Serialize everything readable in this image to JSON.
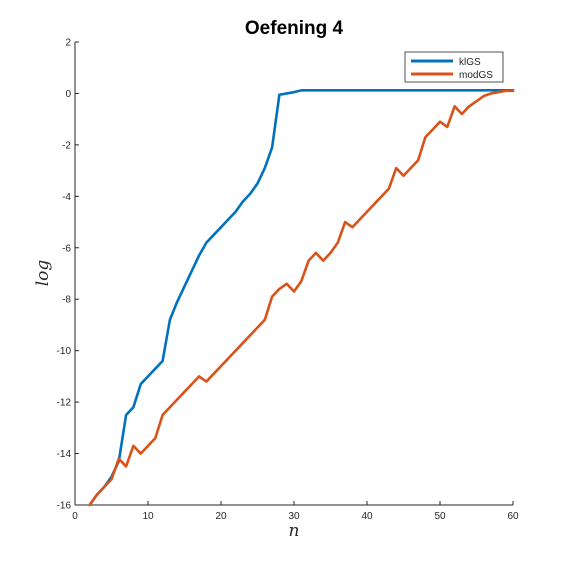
{
  "chart_data": {
    "type": "line",
    "title": "Oefening 4",
    "xlabel": "n",
    "ylabel": "log",
    "xlim": [
      0,
      60
    ],
    "ylim": [
      -16,
      2
    ],
    "xticks": [
      0,
      10,
      20,
      30,
      40,
      50,
      60
    ],
    "yticks": [
      2,
      0,
      -2,
      -4,
      -6,
      -8,
      -10,
      -12,
      -14,
      -16
    ],
    "grid": false,
    "legend_position": "top-right",
    "series": [
      {
        "name": "klGS",
        "color": "#0072BD",
        "x": [
          2,
          3,
          4,
          5,
          6,
          7,
          8,
          9,
          10,
          11,
          12,
          13,
          14,
          15,
          16,
          17,
          18,
          19,
          20,
          21,
          22,
          23,
          24,
          25,
          26,
          27,
          28,
          29,
          30,
          31,
          35,
          40,
          45,
          50,
          55,
          60
        ],
        "y": [
          -16.0,
          -15.6,
          -15.3,
          -14.9,
          -14.3,
          -12.5,
          -12.2,
          -11.3,
          -11.0,
          -10.7,
          -10.4,
          -8.8,
          -8.1,
          -7.5,
          -6.9,
          -6.3,
          -5.8,
          -5.5,
          -5.2,
          -4.9,
          -4.6,
          -4.2,
          -3.9,
          -3.5,
          -2.9,
          -2.1,
          -0.05,
          0.0,
          0.05,
          0.12,
          0.12,
          0.12,
          0.12,
          0.12,
          0.12,
          0.12
        ]
      },
      {
        "name": "modGS",
        "color": "#D95319",
        "x": [
          2,
          3,
          4,
          5,
          6,
          7,
          8,
          9,
          10,
          11,
          12,
          13,
          14,
          15,
          16,
          17,
          18,
          19,
          20,
          21,
          22,
          23,
          24,
          25,
          26,
          27,
          28,
          29,
          30,
          31,
          32,
          33,
          34,
          35,
          36,
          37,
          38,
          39,
          40,
          41,
          42,
          43,
          44,
          45,
          46,
          47,
          48,
          49,
          50,
          51,
          52,
          53,
          54,
          55,
          56,
          57,
          58,
          59,
          60
        ],
        "y": [
          -16.0,
          -15.6,
          -15.3,
          -15.0,
          -14.2,
          -14.5,
          -13.7,
          -14.0,
          -13.7,
          -13.4,
          -12.5,
          -12.2,
          -11.9,
          -11.6,
          -11.3,
          -11.0,
          -11.2,
          -10.9,
          -10.6,
          -10.3,
          -10.0,
          -9.7,
          -9.4,
          -9.1,
          -8.8,
          -7.9,
          -7.6,
          -7.4,
          -7.7,
          -7.3,
          -6.5,
          -6.2,
          -6.5,
          -6.2,
          -5.8,
          -5.0,
          -5.2,
          -4.9,
          -4.6,
          -4.3,
          -4.0,
          -3.7,
          -2.9,
          -3.2,
          -2.9,
          -2.6,
          -1.7,
          -1.4,
          -1.1,
          -1.3,
          -0.5,
          -0.8,
          -0.5,
          -0.3,
          -0.1,
          0.0,
          0.05,
          0.1,
          0.1
        ]
      }
    ]
  }
}
